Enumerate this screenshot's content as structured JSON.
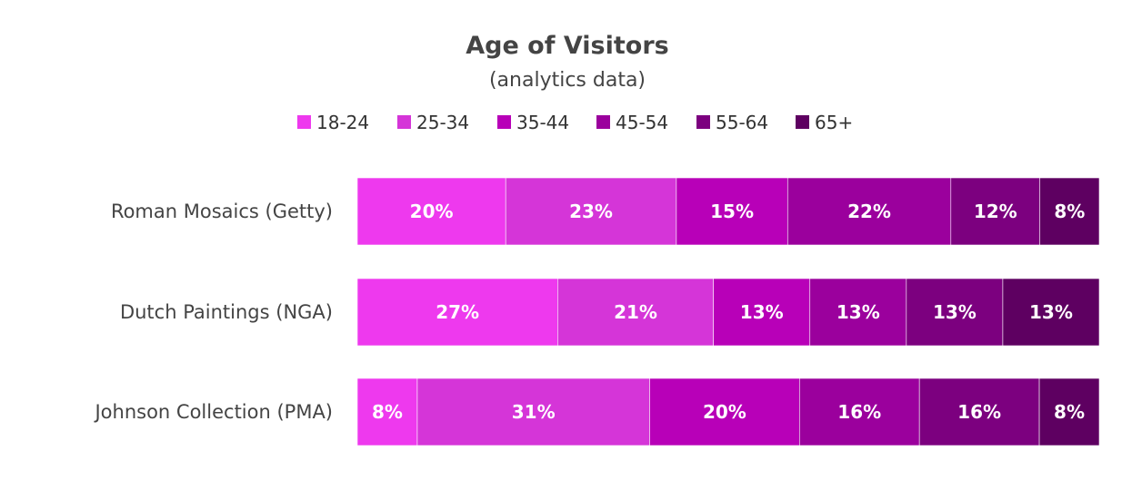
{
  "chart_data": {
    "type": "bar",
    "orientation": "horizontal",
    "stacked": "percent",
    "title": "Age of Visitors",
    "subtitle": "(analytics data)",
    "categories": [
      "Roman Mosaics (Getty)",
      "Dutch Paintings (NGA)",
      "Johnson Collection (PMA)"
    ],
    "series": [
      {
        "name": "18-24",
        "color": "#ee39ee",
        "values": [
          20,
          27,
          8
        ]
      },
      {
        "name": "25-34",
        "color": "#d535d8",
        "values": [
          23,
          21,
          31
        ]
      },
      {
        "name": "35-44",
        "color": "#b800b8",
        "values": [
          15,
          13,
          20
        ]
      },
      {
        "name": "45-54",
        "color": "#9b009d",
        "values": [
          22,
          13,
          16
        ]
      },
      {
        "name": "55-64",
        "color": "#7c007f",
        "values": [
          12,
          13,
          16
        ]
      },
      {
        "name": "65+",
        "color": "#5e0061",
        "values": [
          8,
          13,
          8
        ]
      }
    ],
    "value_suffix": "%",
    "legend_position": "top-center",
    "grid": false
  }
}
